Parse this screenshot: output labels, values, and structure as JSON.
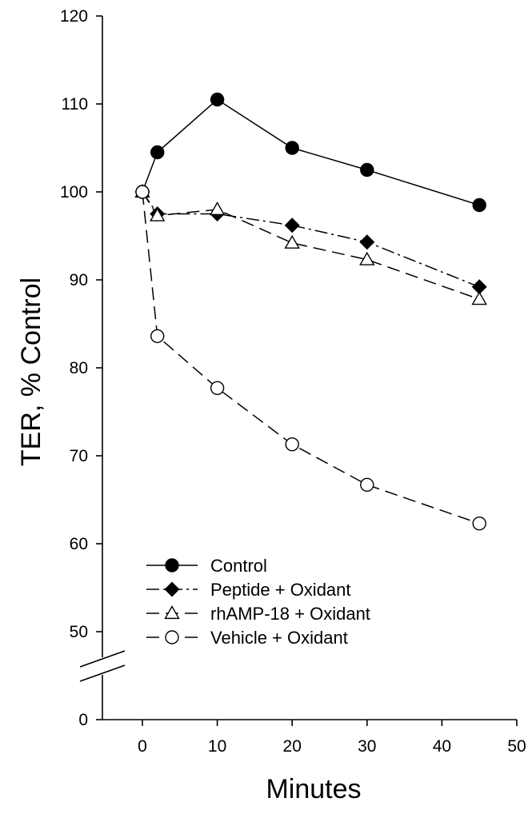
{
  "chart_data": {
    "type": "line",
    "xlabel": "Minutes",
    "ylabel": "TER, % Control",
    "xlim": [
      0,
      50
    ],
    "ylim": [
      45,
      120
    ],
    "y_axis_break": true,
    "xticks": [
      0,
      10,
      20,
      30,
      40,
      50
    ],
    "yticks_upper": [
      50,
      60,
      70,
      80,
      90,
      100,
      110,
      120
    ],
    "ytick_below_break": 0,
    "grid": false,
    "legend_position": "bottom-left",
    "series": [
      {
        "name": "Control",
        "marker": "filled-circle",
        "line": "solid",
        "x": [
          0,
          2,
          10,
          20,
          30,
          45
        ],
        "y": [
          100,
          104.5,
          110.5,
          105,
          102.5,
          98.5
        ]
      },
      {
        "name": "Peptide + Oxidant",
        "marker": "filled-diamond",
        "line": "dash-dot",
        "x": [
          0,
          2,
          10,
          20,
          30,
          45
        ],
        "y": [
          100,
          97.5,
          97.5,
          96.2,
          94.3,
          89.2
        ]
      },
      {
        "name": "rhAMP-18 + Oxidant",
        "marker": "open-triangle",
        "line": "long-dash",
        "x": [
          0,
          2,
          10,
          20,
          30,
          45
        ],
        "y": [
          100,
          97.3,
          98,
          94.2,
          92.3,
          87.8
        ]
      },
      {
        "name": "Vehicle + Oxidant",
        "marker": "open-circle",
        "line": "long-dash",
        "x": [
          0,
          2,
          10,
          20,
          30,
          45
        ],
        "y": [
          100,
          83.6,
          77.7,
          71.3,
          66.7,
          62.3
        ]
      }
    ]
  }
}
